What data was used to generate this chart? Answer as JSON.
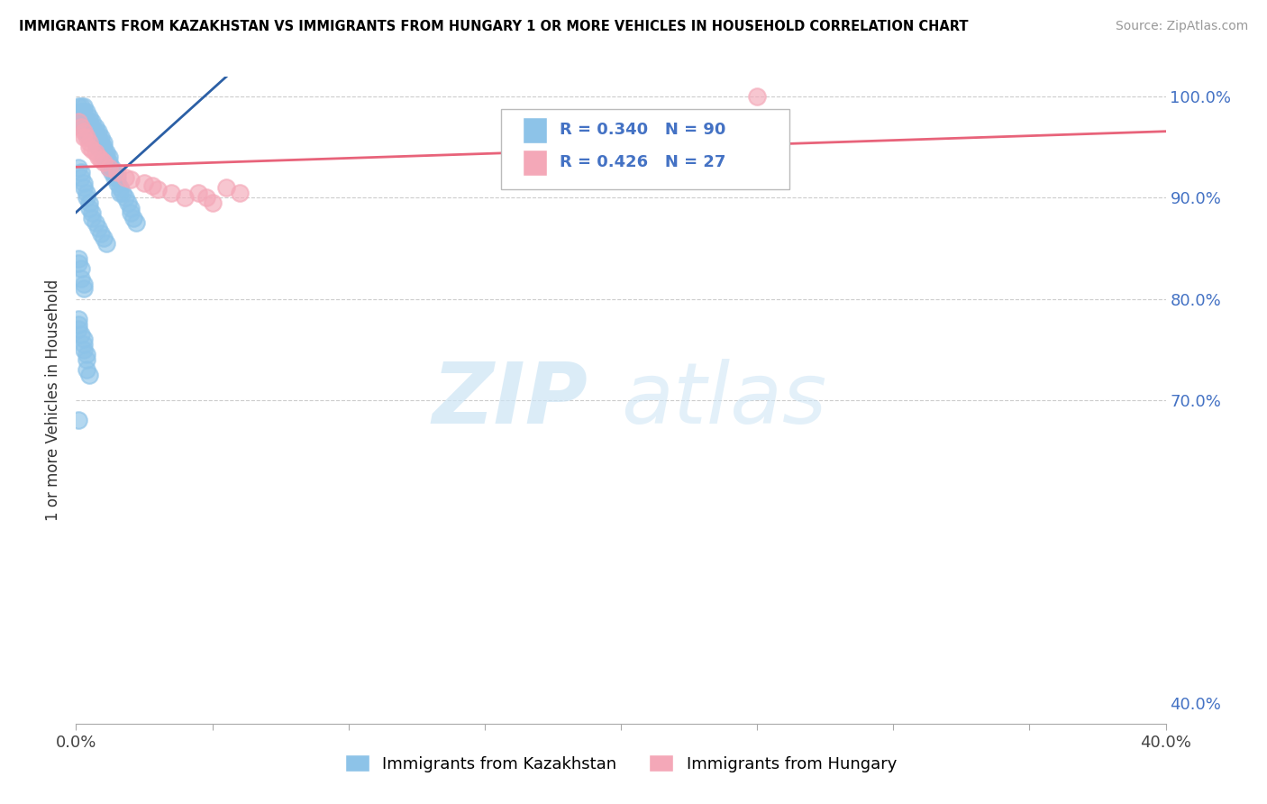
{
  "title": "IMMIGRANTS FROM KAZAKHSTAN VS IMMIGRANTS FROM HUNGARY 1 OR MORE VEHICLES IN HOUSEHOLD CORRELATION CHART",
  "source": "Source: ZipAtlas.com",
  "ylabel": "1 or more Vehicles in Household",
  "xlim": [
    0.0,
    0.4
  ],
  "ylim": [
    0.38,
    1.02
  ],
  "legend_kaz_label": "Immigrants from Kazakhstan",
  "legend_hun_label": "Immigrants from Hungary",
  "R_kaz": 0.34,
  "N_kaz": 90,
  "R_hun": 0.426,
  "N_hun": 27,
  "color_kaz": "#8dc3e8",
  "color_hun": "#f4a8b8",
  "line_color_kaz": "#2b5fa5",
  "line_color_hun": "#e8637a",
  "watermark_zip": "ZIP",
  "watermark_atlas": "atlas",
  "grid_color": "#cccccc",
  "right_tick_color": "#4472c4",
  "kaz_x": [
    0.001,
    0.002,
    0.002,
    0.002,
    0.003,
    0.003,
    0.003,
    0.003,
    0.004,
    0.004,
    0.004,
    0.004,
    0.005,
    0.005,
    0.005,
    0.005,
    0.005,
    0.006,
    0.006,
    0.006,
    0.006,
    0.007,
    0.007,
    0.007,
    0.007,
    0.008,
    0.008,
    0.008,
    0.008,
    0.009,
    0.009,
    0.009,
    0.01,
    0.01,
    0.01,
    0.01,
    0.011,
    0.011,
    0.012,
    0.012,
    0.012,
    0.013,
    0.013,
    0.014,
    0.014,
    0.015,
    0.015,
    0.016,
    0.016,
    0.017,
    0.018,
    0.019,
    0.02,
    0.02,
    0.021,
    0.022,
    0.001,
    0.002,
    0.002,
    0.003,
    0.003,
    0.004,
    0.004,
    0.005,
    0.005,
    0.006,
    0.006,
    0.007,
    0.008,
    0.009,
    0.01,
    0.011,
    0.001,
    0.001,
    0.002,
    0.002,
    0.003,
    0.003,
    0.001,
    0.001,
    0.001,
    0.002,
    0.003,
    0.003,
    0.003,
    0.004,
    0.004,
    0.004,
    0.005,
    0.001
  ],
  "kaz_y": [
    0.99,
    0.99,
    0.985,
    0.975,
    0.99,
    0.985,
    0.975,
    0.97,
    0.985,
    0.975,
    0.97,
    0.965,
    0.98,
    0.975,
    0.97,
    0.965,
    0.96,
    0.975,
    0.97,
    0.965,
    0.96,
    0.97,
    0.965,
    0.96,
    0.955,
    0.965,
    0.96,
    0.955,
    0.95,
    0.96,
    0.955,
    0.95,
    0.955,
    0.95,
    0.945,
    0.94,
    0.945,
    0.94,
    0.94,
    0.935,
    0.93,
    0.93,
    0.925,
    0.925,
    0.92,
    0.92,
    0.915,
    0.91,
    0.905,
    0.905,
    0.9,
    0.895,
    0.89,
    0.885,
    0.88,
    0.875,
    0.93,
    0.925,
    0.92,
    0.915,
    0.91,
    0.905,
    0.9,
    0.895,
    0.89,
    0.885,
    0.88,
    0.875,
    0.87,
    0.865,
    0.86,
    0.855,
    0.84,
    0.835,
    0.83,
    0.82,
    0.815,
    0.81,
    0.78,
    0.775,
    0.77,
    0.765,
    0.76,
    0.755,
    0.75,
    0.745,
    0.74,
    0.73,
    0.725,
    0.68
  ],
  "hun_x": [
    0.001,
    0.002,
    0.003,
    0.003,
    0.004,
    0.005,
    0.005,
    0.006,
    0.007,
    0.008,
    0.009,
    0.01,
    0.012,
    0.015,
    0.018,
    0.02,
    0.025,
    0.028,
    0.03,
    0.035,
    0.04,
    0.045,
    0.048,
    0.05,
    0.055,
    0.06,
    0.25
  ],
  "hun_y": [
    0.975,
    0.97,
    0.965,
    0.96,
    0.96,
    0.955,
    0.95,
    0.948,
    0.945,
    0.94,
    0.938,
    0.935,
    0.93,
    0.925,
    0.92,
    0.918,
    0.915,
    0.912,
    0.908,
    0.905,
    0.9,
    0.905,
    0.9,
    0.895,
    0.91,
    0.905,
    1.0
  ]
}
